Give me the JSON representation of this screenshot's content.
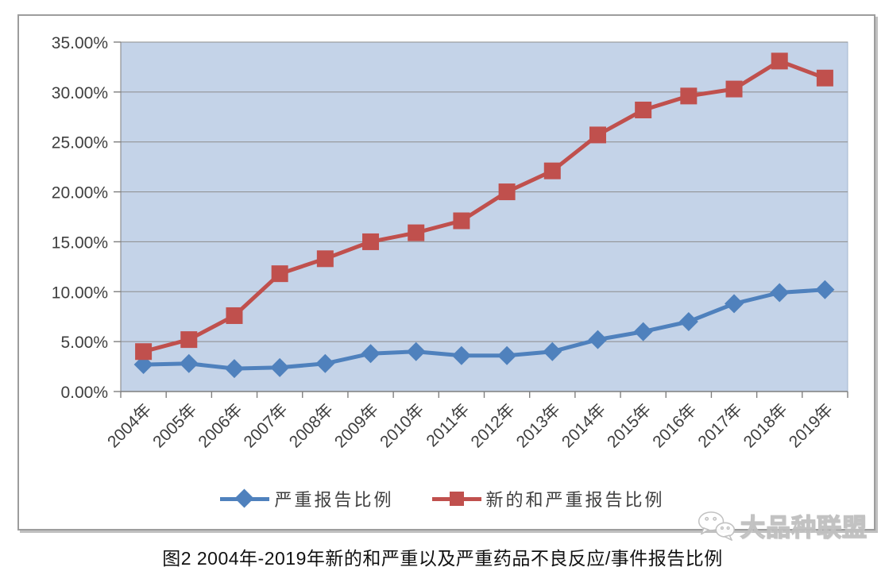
{
  "page": {
    "caption": "图2 2004年-2019年新的和严重以及严重药品不良反应/事件报告比例",
    "watermark_text": "大品种联盟"
  },
  "legend": {
    "items": [
      {
        "label": "严重报告比例",
        "marker": "diamond",
        "color": "#4F81BD"
      },
      {
        "label": "新的和严重报告比例",
        "marker": "square",
        "color": "#C0504D"
      }
    ]
  },
  "colors": {
    "series_blue": "#4F81BD",
    "series_red": "#C0504D",
    "plot_background": "#C4D3E8",
    "gridline": "#8C8C8C",
    "axis_line": "#7F7F7F",
    "tick_text": "#3F3F3F",
    "frame_border": "#9D9D9D"
  },
  "chart_data": {
    "type": "line",
    "title": "图2 2004年-2019年新的和严重以及严重药品不良反应/事件报告比例",
    "categories": [
      "2004年",
      "2005年",
      "2006年",
      "2007年",
      "2008年",
      "2009年",
      "2010年",
      "2011年",
      "2012年",
      "2013年",
      "2014年",
      "2015年",
      "2016年",
      "2017年",
      "2018年",
      "2019年"
    ],
    "series": [
      {
        "name": "严重报告比例",
        "marker": "diamond",
        "color": "#4F81BD",
        "values": [
          2.7,
          2.8,
          2.3,
          2.4,
          2.8,
          3.8,
          4.0,
          3.6,
          3.6,
          4.0,
          5.2,
          6.0,
          7.0,
          8.8,
          9.9,
          10.2
        ]
      },
      {
        "name": "新的和严重报告比例",
        "marker": "square",
        "color": "#C0504D",
        "values": [
          4.0,
          5.2,
          7.6,
          11.8,
          13.3,
          15.0,
          15.9,
          17.1,
          20.0,
          22.1,
          25.7,
          28.2,
          29.6,
          30.3,
          33.1,
          31.4
        ]
      }
    ],
    "xlabel": "",
    "ylabel": "",
    "ylim": [
      0,
      35
    ],
    "y_tick_step": 5,
    "y_tick_labels": [
      "0.00%",
      "5.00%",
      "10.00%",
      "15.00%",
      "20.00%",
      "25.00%",
      "30.00%",
      "35.00%"
    ],
    "grid": true,
    "legend_position": "bottom"
  }
}
